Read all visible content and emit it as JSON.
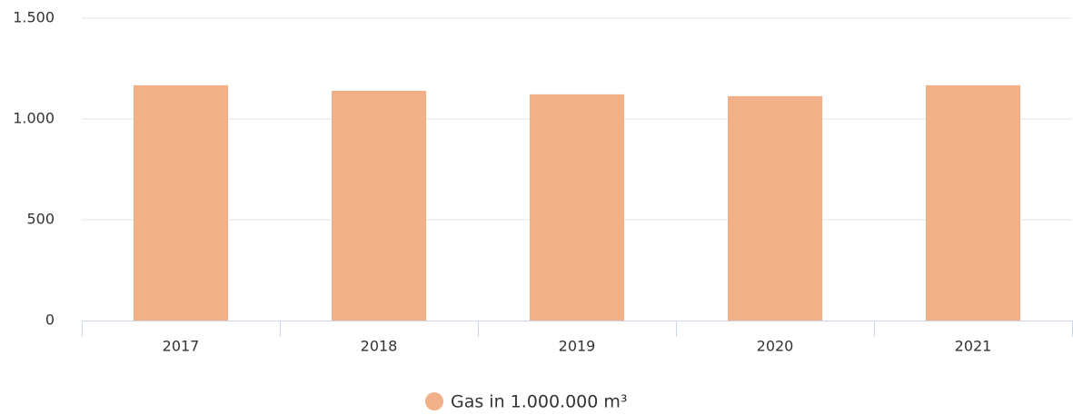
{
  "chart_data": {
    "type": "bar",
    "categories": [
      "2017",
      "2018",
      "2019",
      "2020",
      "2021"
    ],
    "series": [
      {
        "name": "Gas in 1.000.000 m³",
        "color": "#f2b089",
        "values": [
          1167,
          1140,
          1122,
          1113,
          1167
        ]
      }
    ],
    "ylim": [
      0,
      1500
    ],
    "yticks": [
      0,
      500,
      {
        "value": 1000,
        "label": "1.000"
      },
      {
        "value": 1500,
        "label": "1.500"
      }
    ],
    "grid": true,
    "legend": "bottom"
  }
}
